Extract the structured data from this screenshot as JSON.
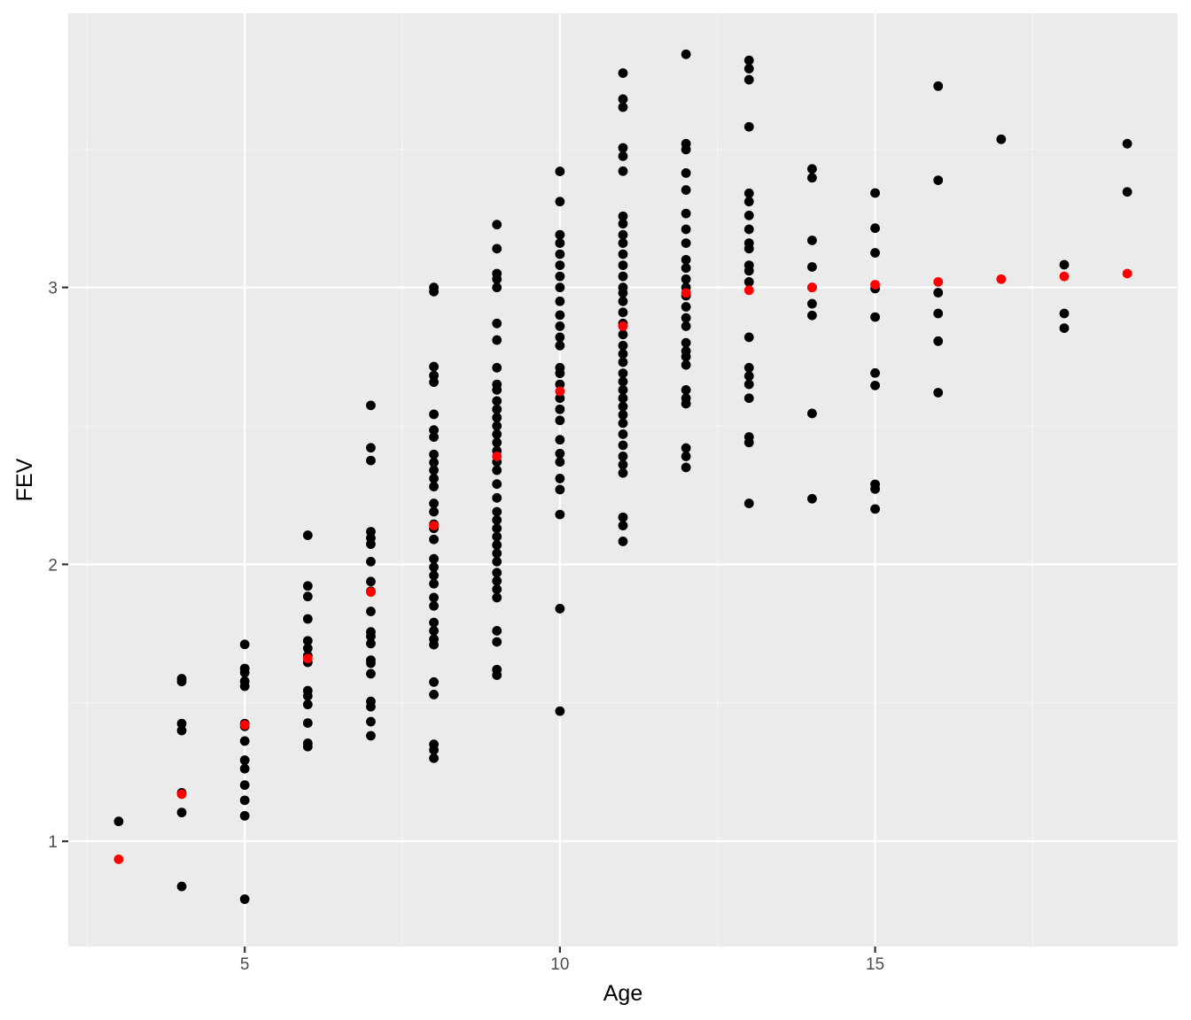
{
  "chart_data": {
    "type": "scatter",
    "title": "",
    "xlabel": "Age",
    "ylabel": "FEV",
    "xlim": [
      2.2,
      19.8
    ],
    "ylim": [
      0.62,
      3.99
    ],
    "x_ticks": [
      5,
      10,
      15
    ],
    "y_ticks": [
      1,
      2,
      3
    ],
    "x_tick_labels": [
      "5",
      "10",
      "15"
    ],
    "y_tick_labels": [
      "1",
      "2",
      "3"
    ],
    "grid": true,
    "legend": "none",
    "colors": {
      "panel": "#ebebeb",
      "grid_major": "#ffffff",
      "grid_minor": "#f5f5f5",
      "observed": "#000000",
      "fitted": "#ff0000"
    },
    "series": [
      {
        "role": "observed",
        "points": [
          [
            3,
            1.072
          ],
          [
            4,
            1.587
          ],
          [
            4,
            1.577
          ],
          [
            4,
            1.425
          ],
          [
            4,
            1.4
          ],
          [
            4,
            1.175
          ],
          [
            4,
            1.104
          ],
          [
            4,
            0.837
          ],
          [
            5,
            1.711
          ],
          [
            5,
            1.624
          ],
          [
            5,
            1.609
          ],
          [
            5,
            1.578
          ],
          [
            5,
            1.56
          ],
          [
            5,
            1.425
          ],
          [
            5,
            1.415
          ],
          [
            5,
            1.362
          ],
          [
            5,
            1.293
          ],
          [
            5,
            1.262
          ],
          [
            5,
            1.203
          ],
          [
            5,
            1.148
          ],
          [
            5,
            1.092
          ],
          [
            5,
            0.791
          ],
          [
            6,
            2.105
          ],
          [
            6,
            1.922
          ],
          [
            6,
            1.884
          ],
          [
            6,
            1.803
          ],
          [
            6,
            1.724
          ],
          [
            6,
            1.697
          ],
          [
            6,
            1.67
          ],
          [
            6,
            1.646
          ],
          [
            6,
            1.544
          ],
          [
            6,
            1.525
          ],
          [
            6,
            1.494
          ],
          [
            6,
            1.427
          ],
          [
            6,
            1.354
          ],
          [
            6,
            1.342
          ],
          [
            7,
            2.574
          ],
          [
            7,
            2.421
          ],
          [
            7,
            2.375
          ],
          [
            7,
            2.118
          ],
          [
            7,
            2.095
          ],
          [
            7,
            2.073
          ],
          [
            7,
            2.01
          ],
          [
            7,
            1.938
          ],
          [
            7,
            1.903
          ],
          [
            7,
            1.83
          ],
          [
            7,
            1.756
          ],
          [
            7,
            1.74
          ],
          [
            7,
            1.714
          ],
          [
            7,
            1.654
          ],
          [
            7,
            1.643
          ],
          [
            7,
            1.605
          ],
          [
            7,
            1.505
          ],
          [
            7,
            1.486
          ],
          [
            7,
            1.432
          ],
          [
            7,
            1.381
          ],
          [
            8,
            3.0
          ],
          [
            8,
            2.985
          ],
          [
            8,
            2.714
          ],
          [
            8,
            2.682
          ],
          [
            8,
            2.658
          ],
          [
            8,
            2.542
          ],
          [
            8,
            2.485
          ],
          [
            8,
            2.46
          ],
          [
            8,
            2.397
          ],
          [
            8,
            2.368
          ],
          [
            8,
            2.34
          ],
          [
            8,
            2.31
          ],
          [
            8,
            2.281
          ],
          [
            8,
            2.22
          ],
          [
            8,
            2.19
          ],
          [
            8,
            2.145
          ],
          [
            8,
            2.13
          ],
          [
            8,
            2.09
          ],
          [
            8,
            2.02
          ],
          [
            8,
            1.99
          ],
          [
            8,
            1.96
          ],
          [
            8,
            1.93
          ],
          [
            8,
            1.88
          ],
          [
            8,
            1.85
          ],
          [
            8,
            1.79
          ],
          [
            8,
            1.76
          ],
          [
            8,
            1.73
          ],
          [
            8,
            1.71
          ],
          [
            8,
            1.575
          ],
          [
            8,
            1.53
          ],
          [
            8,
            1.35
          ],
          [
            8,
            1.33
          ],
          [
            8,
            1.3
          ],
          [
            9,
            3.227
          ],
          [
            9,
            3.14
          ],
          [
            9,
            3.05
          ],
          [
            9,
            3.03
          ],
          [
            9,
            3.0
          ],
          [
            9,
            2.87
          ],
          [
            9,
            2.81
          ],
          [
            9,
            2.71
          ],
          [
            9,
            2.65
          ],
          [
            9,
            2.63
          ],
          [
            9,
            2.59
          ],
          [
            9,
            2.56
          ],
          [
            9,
            2.53
          ],
          [
            9,
            2.5
          ],
          [
            9,
            2.47
          ],
          [
            9,
            2.44
          ],
          [
            9,
            2.41
          ],
          [
            9,
            2.37
          ],
          [
            9,
            2.34
          ],
          [
            9,
            2.29
          ],
          [
            9,
            2.24
          ],
          [
            9,
            2.19
          ],
          [
            9,
            2.16
          ],
          [
            9,
            2.13
          ],
          [
            9,
            2.1
          ],
          [
            9,
            2.07
          ],
          [
            9,
            2.04
          ],
          [
            9,
            2.01
          ],
          [
            9,
            1.97
          ],
          [
            9,
            1.94
          ],
          [
            9,
            1.91
          ],
          [
            9,
            1.88
          ],
          [
            9,
            1.76
          ],
          [
            9,
            1.72
          ],
          [
            9,
            1.62
          ],
          [
            9,
            1.6
          ],
          [
            10,
            3.419
          ],
          [
            10,
            3.31
          ],
          [
            10,
            3.19
          ],
          [
            10,
            3.16
          ],
          [
            10,
            3.12
          ],
          [
            10,
            3.08
          ],
          [
            10,
            3.04
          ],
          [
            10,
            3.0
          ],
          [
            10,
            2.95
          ],
          [
            10,
            2.9
          ],
          [
            10,
            2.86
          ],
          [
            10,
            2.82
          ],
          [
            10,
            2.79
          ],
          [
            10,
            2.71
          ],
          [
            10,
            2.69
          ],
          [
            10,
            2.65
          ],
          [
            10,
            2.6
          ],
          [
            10,
            2.56
          ],
          [
            10,
            2.52
          ],
          [
            10,
            2.45
          ],
          [
            10,
            2.4
          ],
          [
            10,
            2.37
          ],
          [
            10,
            2.31
          ],
          [
            10,
            2.27
          ],
          [
            10,
            2.18
          ],
          [
            10,
            1.84
          ],
          [
            10,
            1.47
          ],
          [
            11,
            3.774
          ],
          [
            11,
            3.68
          ],
          [
            11,
            3.651
          ],
          [
            11,
            3.504
          ],
          [
            11,
            3.474
          ],
          [
            11,
            3.42
          ],
          [
            11,
            3.257
          ],
          [
            11,
            3.23
          ],
          [
            11,
            3.19
          ],
          [
            11,
            3.16
          ],
          [
            11,
            3.12
          ],
          [
            11,
            3.08
          ],
          [
            11,
            3.04
          ],
          [
            11,
            3.0
          ],
          [
            11,
            2.98
          ],
          [
            11,
            2.95
          ],
          [
            11,
            2.91
          ],
          [
            11,
            2.87
          ],
          [
            11,
            2.83
          ],
          [
            11,
            2.79
          ],
          [
            11,
            2.76
          ],
          [
            11,
            2.73
          ],
          [
            11,
            2.69
          ],
          [
            11,
            2.66
          ],
          [
            11,
            2.63
          ],
          [
            11,
            2.6
          ],
          [
            11,
            2.57
          ],
          [
            11,
            2.54
          ],
          [
            11,
            2.51
          ],
          [
            11,
            2.47
          ],
          [
            11,
            2.43
          ],
          [
            11,
            2.39
          ],
          [
            11,
            2.36
          ],
          [
            11,
            2.33
          ],
          [
            11,
            2.17
          ],
          [
            11,
            2.14
          ],
          [
            11,
            2.083
          ],
          [
            12,
            3.842
          ],
          [
            12,
            3.519
          ],
          [
            12,
            3.498
          ],
          [
            12,
            3.413
          ],
          [
            12,
            3.352
          ],
          [
            12,
            3.267
          ],
          [
            12,
            3.21
          ],
          [
            12,
            3.16
          ],
          [
            12,
            3.1
          ],
          [
            12,
            3.07
          ],
          [
            12,
            3.03
          ],
          [
            12,
            3.0
          ],
          [
            12,
            2.97
          ],
          [
            12,
            2.93
          ],
          [
            12,
            2.89
          ],
          [
            12,
            2.86
          ],
          [
            12,
            2.8
          ],
          [
            12,
            2.77
          ],
          [
            12,
            2.75
          ],
          [
            12,
            2.72
          ],
          [
            12,
            2.63
          ],
          [
            12,
            2.6
          ],
          [
            12,
            2.58
          ],
          [
            12,
            2.42
          ],
          [
            12,
            2.39
          ],
          [
            12,
            2.35
          ],
          [
            13,
            3.82
          ],
          [
            13,
            3.79
          ],
          [
            13,
            3.75
          ],
          [
            13,
            3.58
          ],
          [
            13,
            3.34
          ],
          [
            13,
            3.31
          ],
          [
            13,
            3.26
          ],
          [
            13,
            3.21
          ],
          [
            13,
            3.16
          ],
          [
            13,
            3.14
          ],
          [
            13,
            3.08
          ],
          [
            13,
            3.06
          ],
          [
            13,
            3.02
          ],
          [
            13,
            2.82
          ],
          [
            13,
            2.71
          ],
          [
            13,
            2.68
          ],
          [
            13,
            2.65
          ],
          [
            13,
            2.6
          ],
          [
            13,
            2.46
          ],
          [
            13,
            2.44
          ],
          [
            13,
            2.22
          ],
          [
            14,
            3.428
          ],
          [
            14,
            3.396
          ],
          [
            14,
            3.17
          ],
          [
            14,
            3.074
          ],
          [
            14,
            3.0
          ],
          [
            14,
            2.941
          ],
          [
            14,
            2.899
          ],
          [
            14,
            2.545
          ],
          [
            14,
            2.237
          ],
          [
            15,
            3.341
          ],
          [
            15,
            3.214
          ],
          [
            15,
            3.125
          ],
          [
            15,
            2.996
          ],
          [
            15,
            2.893
          ],
          [
            15,
            2.691
          ],
          [
            15,
            2.646
          ],
          [
            15,
            2.289
          ],
          [
            15,
            2.272
          ],
          [
            15,
            2.2
          ],
          [
            16,
            3.727
          ],
          [
            16,
            3.387
          ],
          [
            16,
            2.981
          ],
          [
            16,
            2.906
          ],
          [
            16,
            2.806
          ],
          [
            16,
            2.62
          ],
          [
            17,
            3.535
          ],
          [
            18,
            3.082
          ],
          [
            18,
            2.906
          ],
          [
            18,
            2.853
          ],
          [
            19,
            3.519
          ],
          [
            19,
            3.345
          ]
        ]
      },
      {
        "role": "fitted",
        "points": [
          [
            3,
            0.935
          ],
          [
            4,
            1.17
          ],
          [
            5,
            1.42
          ],
          [
            6,
            1.66
          ],
          [
            7,
            1.9
          ],
          [
            8,
            2.14
          ],
          [
            9,
            2.39
          ],
          [
            10,
            2.625
          ],
          [
            11,
            2.86
          ],
          [
            12,
            2.98
          ],
          [
            13,
            2.99
          ],
          [
            14,
            3.0
          ],
          [
            15,
            3.01
          ],
          [
            16,
            3.02
          ],
          [
            17,
            3.03
          ],
          [
            18,
            3.04
          ],
          [
            19,
            3.05
          ]
        ]
      }
    ]
  }
}
